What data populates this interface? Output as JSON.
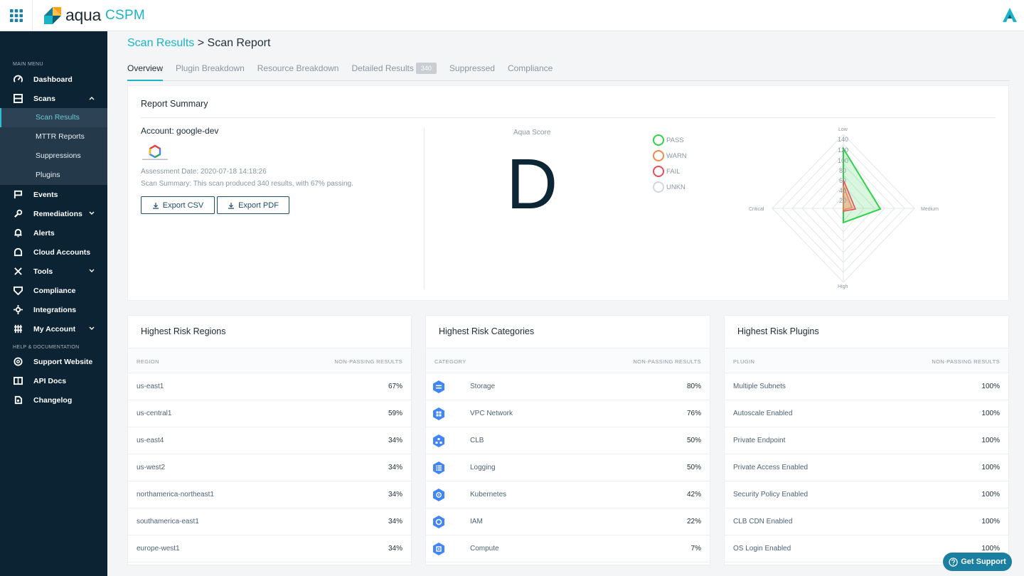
{
  "brand": {
    "word": "aqua",
    "product": "CSPM"
  },
  "sidebar": {
    "main_menu_label": "MAIN MENU",
    "help_label": "HELP & DOCUMENTATION",
    "items": [
      {
        "label": "Dashboard",
        "icon": "dashboard-icon"
      },
      {
        "label": "Scans",
        "icon": "scans-icon"
      },
      {
        "label": "Events",
        "icon": "flag-icon"
      },
      {
        "label": "Remediations",
        "icon": "wrench-icon"
      },
      {
        "label": "Alerts",
        "icon": "bell-icon"
      },
      {
        "label": "Cloud Accounts",
        "icon": "cloud-icon"
      },
      {
        "label": "Tools",
        "icon": "tools-icon"
      },
      {
        "label": "Compliance",
        "icon": "shield-icon"
      },
      {
        "label": "Integrations",
        "icon": "integrations-icon"
      },
      {
        "label": "My Account",
        "icon": "account-icon"
      }
    ],
    "scans_sub": [
      "Scan Results",
      "MTTR Reports",
      "Suppressions",
      "Plugins"
    ],
    "help_items": [
      {
        "label": "Support Website",
        "icon": "lifebuoy-icon"
      },
      {
        "label": "API Docs",
        "icon": "book-icon"
      },
      {
        "label": "Changelog",
        "icon": "changelog-icon"
      }
    ]
  },
  "breadcrumb": {
    "parent": "Scan Results",
    "separator": ">",
    "current": "Scan Report"
  },
  "tabs": [
    {
      "label": "Overview"
    },
    {
      "label": "Plugin Breakdown"
    },
    {
      "label": "Resource Breakdown"
    },
    {
      "label": "Detailed Results",
      "badge": "340"
    },
    {
      "label": "Suppressed"
    },
    {
      "label": "Compliance"
    }
  ],
  "summary": {
    "title": "Report Summary",
    "account": "Account: google-dev",
    "assessment_date": "Assessment Date: 2020-07-18 14:18:26",
    "scan_summary": "Scan Summary: This scan produced 340 results, with 67% passing.",
    "export_csv": "Export CSV",
    "export_pdf": "Export PDF",
    "score_label": "Aqua Score",
    "score": "D",
    "legend": [
      {
        "label": "PASS",
        "color": "#2fd34a"
      },
      {
        "label": "WARN",
        "color": "#f08a4b"
      },
      {
        "label": "FAIL",
        "color": "#e94b5a"
      },
      {
        "label": "UNKN",
        "color": "#d3d7db"
      }
    ],
    "radar": {
      "axes": [
        "Low",
        "Medium",
        "High",
        "Critical"
      ],
      "ticks": [
        "140",
        "120",
        "100",
        "80",
        "60",
        "40",
        "20"
      ]
    }
  },
  "regions": {
    "title": "Highest Risk Regions",
    "col_left": "REGION",
    "col_right": "NON-PASSING RESULTS",
    "rows": [
      {
        "name": "us-east1",
        "value": "67%"
      },
      {
        "name": "us-central1",
        "value": "59%"
      },
      {
        "name": "us-east4",
        "value": "34%"
      },
      {
        "name": "us-west2",
        "value": "34%"
      },
      {
        "name": "northamerica-northeast1",
        "value": "34%"
      },
      {
        "name": "southamerica-east1",
        "value": "34%"
      },
      {
        "name": "europe-west1",
        "value": "34%"
      }
    ]
  },
  "categories": {
    "title": "Highest Risk Categories",
    "col_left": "CATEGORY",
    "col_right": "NON-PASSING RESULTS",
    "rows": [
      {
        "name": "Storage",
        "value": "80%",
        "icon": "storage-icon"
      },
      {
        "name": "VPC Network",
        "value": "76%",
        "icon": "vpc-network-icon"
      },
      {
        "name": "CLB",
        "value": "50%",
        "icon": "load-balancer-icon"
      },
      {
        "name": "Logging",
        "value": "50%",
        "icon": "logging-icon"
      },
      {
        "name": "Kubernetes",
        "value": "42%",
        "icon": "kubernetes-icon"
      },
      {
        "name": "IAM",
        "value": "22%",
        "icon": "iam-icon"
      },
      {
        "name": "Compute",
        "value": "7%",
        "icon": "compute-icon"
      }
    ]
  },
  "plugins": {
    "title": "Highest Risk Plugins",
    "col_left": "PLUGIN",
    "col_right": "NON-PASSING RESULTS",
    "rows": [
      {
        "name": "Multiple Subnets",
        "value": "100%"
      },
      {
        "name": "Autoscale Enabled",
        "value": "100%"
      },
      {
        "name": "Private Endpoint",
        "value": "100%"
      },
      {
        "name": "Private Access Enabled",
        "value": "100%"
      },
      {
        "name": "Security Policy Enabled",
        "value": "100%"
      },
      {
        "name": "CLB CDN Enabled",
        "value": "100%"
      },
      {
        "name": "OS Login Enabled",
        "value": "100%"
      }
    ]
  },
  "support_button": "Get Support"
}
